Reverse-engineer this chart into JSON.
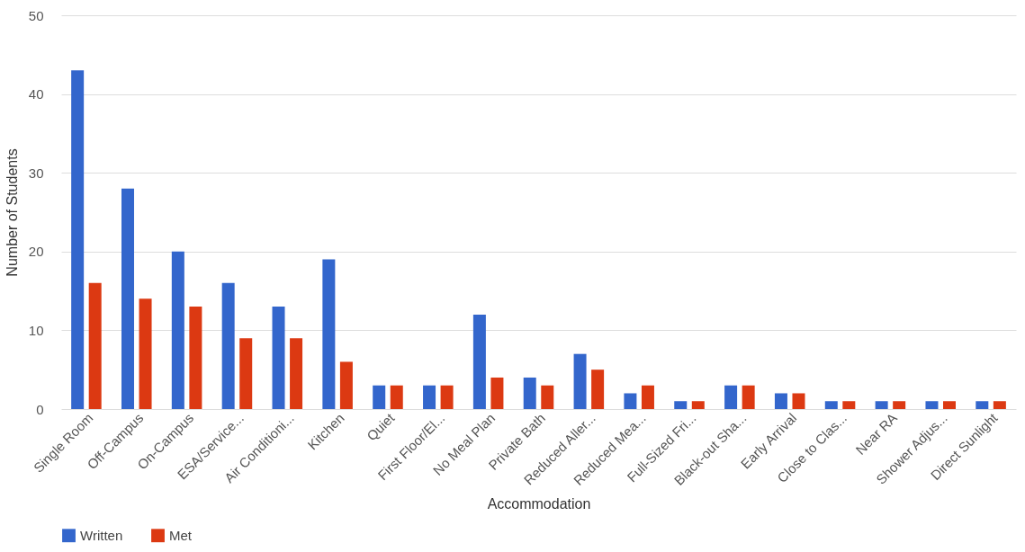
{
  "chart_data": {
    "type": "bar",
    "xlabel": "Accommodation",
    "ylabel": "Number of Students",
    "categories": [
      "Single Room",
      "Off-Campus",
      "On-Campus",
      "ESA/Service...",
      "Air Conditioni...",
      "Kitchen",
      "Quiet",
      "First Floor/El...",
      "No Meal Plan",
      "Private Bath",
      "Reduced Aller...",
      "Reduced Mea...",
      "Full-Sized Fri...",
      "Black-out Sha...",
      "Early Arrival",
      "Close to Clas...",
      "Near RA",
      "Shower Adjus...",
      "Direct Sunlight"
    ],
    "series": [
      {
        "name": "Written",
        "color": "#3366cc",
        "values": [
          43,
          28,
          20,
          16,
          13,
          19,
          3,
          3,
          12,
          4,
          7,
          2,
          1,
          3,
          2,
          1,
          1,
          1,
          1
        ]
      },
      {
        "name": "Met",
        "color": "#dc3912",
        "values": [
          16,
          14,
          13,
          9,
          9,
          6,
          3,
          3,
          4,
          3,
          5,
          3,
          1,
          3,
          2,
          1,
          1,
          1,
          1
        ]
      }
    ],
    "ylim": [
      0,
      50
    ],
    "yticks": [
      0,
      10,
      20,
      30,
      40,
      50
    ],
    "grid": "y",
    "legend": "bottom"
  }
}
